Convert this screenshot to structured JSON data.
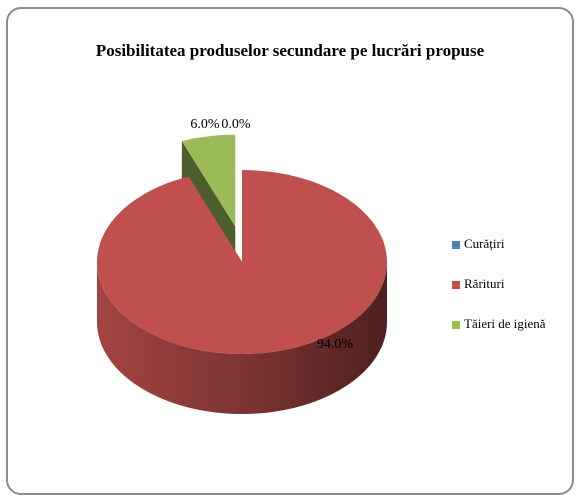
{
  "chart_data": {
    "type": "pie",
    "title": "Posibilitatea produselor secundare pe lucrări propuse",
    "categories": [
      "Curățiri",
      "Rărituri",
      "Tăieri de igienă"
    ],
    "series": [
      {
        "name": "Posibilitatea produselor secundare pe lucrări propuse",
        "values": [
          0,
          94,
          6
        ],
        "value_labels": [
          "0.0%",
          "94.0%",
          "6.0%"
        ],
        "colors": [
          "#4f81bd",
          "#c0504d",
          "#9bbb59"
        ]
      }
    ],
    "legend": "right",
    "exploded": [
      2
    ]
  }
}
